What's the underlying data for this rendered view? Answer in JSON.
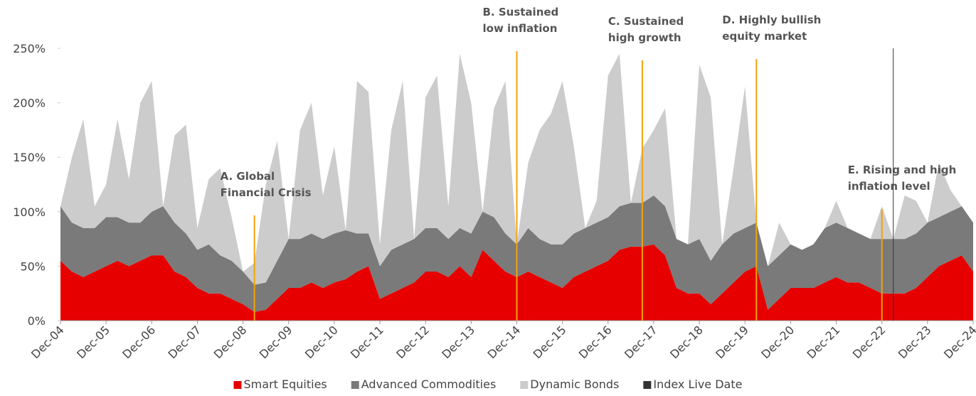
{
  "chart_data": {
    "type": "stacked_area",
    "categories": [
      "Dec-04",
      null,
      null,
      null,
      "Dec-05",
      null,
      null,
      null,
      "Dec-06",
      null,
      null,
      null,
      "Dec-07",
      null,
      null,
      null,
      "Dec-08",
      null,
      null,
      null,
      "Dec-09",
      null,
      null,
      null,
      "Dec-10",
      null,
      null,
      null,
      "Dec-11",
      null,
      null,
      null,
      "Dec-12",
      null,
      null,
      null,
      "Dec-13",
      null,
      null,
      null,
      "Dec-14",
      null,
      null,
      null,
      "Dec-15",
      null,
      null,
      null,
      "Dec-16",
      null,
      null,
      null,
      "Dec-17",
      null,
      null,
      null,
      "Dec-18",
      null,
      null,
      null,
      "Dec-19",
      null,
      null,
      null,
      "Dec-20",
      null,
      null,
      null,
      "Dec-21",
      null,
      null,
      null,
      "Dec-22",
      null,
      null,
      null,
      "Dec-23",
      null,
      null,
      null,
      "Dec-24"
    ],
    "series": [
      {
        "name": "Smart Equities",
        "color": "#e60000",
        "values": [
          55,
          45,
          40,
          45,
          50,
          55,
          50,
          55,
          60,
          60,
          45,
          40,
          30,
          25,
          25,
          20,
          15,
          8,
          10,
          20,
          30,
          30,
          35,
          30,
          35,
          38,
          45,
          50,
          20,
          25,
          30,
          35,
          45,
          45,
          40,
          50,
          40,
          65,
          55,
          45,
          40,
          45,
          40,
          35,
          30,
          40,
          45,
          50,
          55,
          65,
          68,
          68,
          70,
          60,
          30,
          25,
          25,
          15,
          25,
          35,
          45,
          50,
          10,
          20,
          30,
          30,
          30,
          35,
          40,
          35,
          35,
          30,
          25,
          25,
          25,
          30,
          40,
          50,
          55,
          60,
          45
        ]
      },
      {
        "name": "Advanced Commodities",
        "color": "#7a7a7a",
        "values": [
          50,
          45,
          45,
          40,
          45,
          40,
          40,
          35,
          40,
          45,
          45,
          40,
          35,
          45,
          35,
          35,
          30,
          25,
          25,
          35,
          45,
          45,
          45,
          45,
          45,
          45,
          35,
          30,
          30,
          40,
          40,
          40,
          40,
          40,
          35,
          35,
          40,
          35,
          40,
          35,
          30,
          40,
          35,
          35,
          40,
          40,
          40,
          40,
          40,
          40,
          40,
          40,
          45,
          45,
          45,
          45,
          50,
          40,
          45,
          45,
          40,
          40,
          40,
          40,
          40,
          35,
          40,
          50,
          50,
          50,
          45,
          45,
          50,
          50,
          50,
          50,
          50,
          45,
          45,
          45,
          45
        ]
      },
      {
        "name": "Dynamic Bonds",
        "color": "#cccccc",
        "values": [
          0,
          60,
          100,
          20,
          30,
          90,
          40,
          110,
          120,
          0,
          80,
          100,
          20,
          60,
          80,
          40,
          0,
          20,
          90,
          110,
          0,
          100,
          120,
          40,
          80,
          0,
          140,
          130,
          20,
          110,
          150,
          0,
          120,
          140,
          30,
          160,
          120,
          0,
          100,
          140,
          0,
          60,
          100,
          120,
          150,
          80,
          0,
          20,
          130,
          140,
          0,
          50,
          60,
          90,
          0,
          0,
          160,
          150,
          0,
          60,
          130,
          0,
          0,
          30,
          0,
          0,
          0,
          0,
          20,
          0,
          0,
          0,
          30,
          0,
          40,
          30,
          0,
          50,
          20,
          0,
          0
        ]
      }
    ],
    "ylim": [
      0,
      250
    ],
    "yticks": [
      {
        "value": 0,
        "label": "0%"
      },
      {
        "value": 50,
        "label": "50%"
      },
      {
        "value": 100,
        "label": "100%"
      },
      {
        "value": 150,
        "label": "150%"
      },
      {
        "value": 200,
        "label": "200%"
      },
      {
        "value": 250,
        "label": "250%"
      }
    ],
    "events": [
      {
        "lines": [
          "A. Global",
          "Financial Crisis"
        ],
        "at": 17,
        "color": "#f0a30a"
      },
      {
        "lines": [
          "B. Sustained",
          "low inflation"
        ],
        "at": 40,
        "color": "#f0a30a"
      },
      {
        "lines": [
          "C. Sustained",
          "high growth"
        ],
        "at": 51,
        "color": "#f0a30a"
      },
      {
        "lines": [
          "D. Highly bullish",
          "equity market"
        ],
        "at": 61,
        "color": "#f0a30a"
      },
      {
        "lines": [
          "E. Rising and high",
          "inflation level"
        ],
        "at": 72,
        "color": "#f0a30a"
      }
    ],
    "index_live_date": {
      "name": "Index Live Date",
      "at": 73,
      "color": "#333333"
    }
  }
}
